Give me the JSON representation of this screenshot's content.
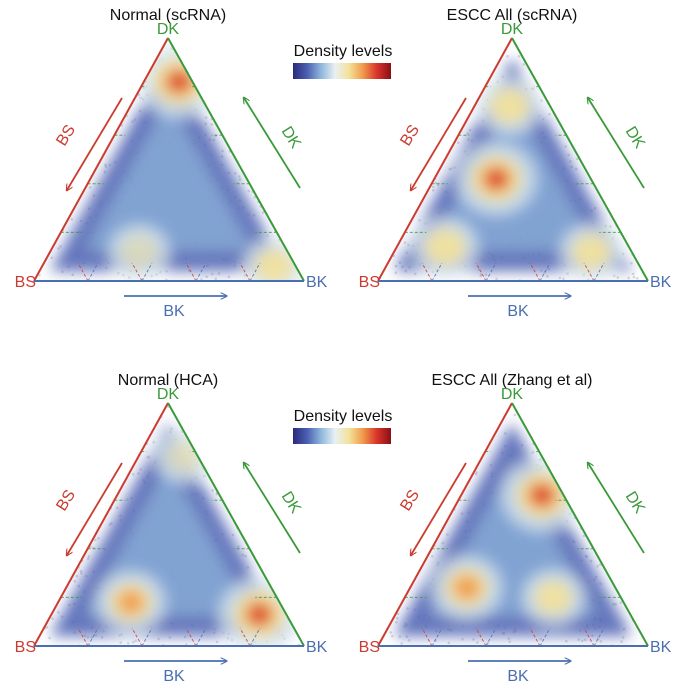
{
  "legend": {
    "label": "Density levels",
    "stops": [
      "#2b2a7a",
      "#4a5fb0",
      "#8fb6dc",
      "#e8f0f4",
      "#f3e29a",
      "#ef9a4b",
      "#d8342a",
      "#8a0f15"
    ]
  },
  "axis_colors": {
    "BS": "#cc3b2f",
    "DK": "#3a9a3a",
    "BK": "#4a6fb0"
  },
  "chart_data": [
    {
      "type": "scatter",
      "title": "Normal (scRNA)",
      "vertices": {
        "top": "DK",
        "left": "BS",
        "right": "BK"
      },
      "arrow_labels": {
        "left": "BS",
        "right": "DK",
        "bottom": "BK"
      },
      "density_peaks": [
        {
          "BS": 0.05,
          "DK": 0.82,
          "BK": 0.13,
          "level": 1.0
        },
        {
          "BS": 0.08,
          "DK": 0.06,
          "BK": 0.86,
          "level": 0.45
        },
        {
          "BS": 0.55,
          "DK": 0.12,
          "BK": 0.33,
          "level": 0.4
        }
      ]
    },
    {
      "type": "scatter",
      "title": "ESCC All (scRNA)",
      "vertices": {
        "top": "DK",
        "left": "BS",
        "right": "BK"
      },
      "arrow_labels": {
        "left": "BS",
        "right": "DK",
        "bottom": "BK"
      },
      "density_peaks": [
        {
          "BS": 0.35,
          "DK": 0.42,
          "BK": 0.23,
          "level": 1.0
        },
        {
          "BS": 0.15,
          "DK": 0.72,
          "BK": 0.13,
          "level": 0.5
        },
        {
          "BS": 0.68,
          "DK": 0.14,
          "BK": 0.18,
          "level": 0.55
        },
        {
          "BS": 0.15,
          "DK": 0.12,
          "BK": 0.73,
          "level": 0.45
        }
      ]
    },
    {
      "type": "scatter",
      "title": "Normal (HCA)",
      "vertices": {
        "top": "DK",
        "left": "BS",
        "right": "BK"
      },
      "arrow_labels": {
        "left": "BS",
        "right": "DK",
        "bottom": "BK"
      },
      "density_peaks": [
        {
          "BS": 0.1,
          "DK": 0.13,
          "BK": 0.77,
          "level": 1.0
        },
        {
          "BS": 0.55,
          "DK": 0.18,
          "BK": 0.27,
          "level": 0.65
        },
        {
          "BS": 0.05,
          "DK": 0.78,
          "BK": 0.17,
          "level": 0.35
        }
      ]
    },
    {
      "type": "scatter",
      "title": "ESCC All (Zhang et al)",
      "vertices": {
        "top": "DK",
        "left": "BS",
        "right": "BK"
      },
      "arrow_labels": {
        "left": "BS",
        "right": "DK",
        "bottom": "BK"
      },
      "density_peaks": [
        {
          "BS": 0.08,
          "DK": 0.62,
          "BK": 0.3,
          "level": 1.0
        },
        {
          "BS": 0.55,
          "DK": 0.24,
          "BK": 0.21,
          "level": 0.7
        },
        {
          "BS": 0.25,
          "DK": 0.2,
          "BK": 0.55,
          "level": 0.45
        }
      ]
    }
  ]
}
